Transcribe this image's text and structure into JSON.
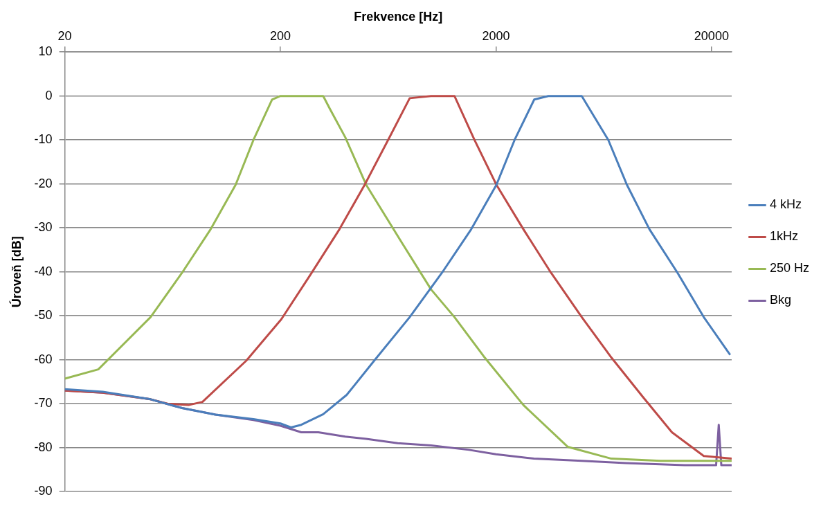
{
  "chart_data": {
    "type": "line",
    "xlabel": "Frekvence [Hz]",
    "ylabel": "Úroveň [dB]",
    "log": "x",
    "xlim": [
      20,
      24800
    ],
    "xticks": [
      20,
      200,
      2000,
      20000
    ],
    "ylim": [
      -90,
      10
    ],
    "yticks": [
      -90,
      -80,
      -70,
      -60,
      -50,
      -40,
      -30,
      -20,
      -10,
      0,
      10
    ],
    "grid": "y",
    "legend": "right",
    "marker": "none",
    "line_style": "solid",
    "series": [
      {
        "name": "4 kHz",
        "color": "#4a7ebb",
        "x": [
          20,
          30,
          50,
          70,
          100,
          150,
          200,
          224,
          250,
          316,
          406,
          545,
          796,
          1124,
          1536,
          2010,
          2440,
          3010,
          3500,
          4000,
          4500,
          5000,
          6640,
          8100,
          10300,
          13900,
          18400,
          24400
        ],
        "values": [
          -66.7,
          -67.3,
          -69,
          -71,
          -72.5,
          -73.5,
          -74.5,
          -75.4,
          -74.8,
          -72.4,
          -68,
          -60.2,
          -50.3,
          -40.2,
          -30.3,
          -20.2,
          -10,
          -0.8,
          0,
          0,
          0,
          0,
          -10,
          -20.2,
          -30.3,
          -40.2,
          -50.3,
          -58.9
        ]
      },
      {
        "name": "1kHz",
        "color": "#be4b48",
        "x": [
          20,
          30,
          50,
          60,
          75,
          87,
          139,
          202,
          277,
          376,
          492,
          632,
          796,
          1000,
          1284,
          1590,
          2010,
          2680,
          3600,
          5000,
          6860,
          9580,
          13100,
          18400,
          24800
        ],
        "values": [
          -67,
          -67.5,
          -69,
          -70,
          -70.3,
          -69.6,
          -60.2,
          -50.8,
          -40.5,
          -30.3,
          -20.2,
          -10,
          -0.5,
          0,
          0,
          -10,
          -20.2,
          -30.3,
          -40.2,
          -50.3,
          -59.5,
          -68.4,
          -76.5,
          -81.9,
          -82.5
        ]
      },
      {
        "name": "250 Hz",
        "color": "#98b954",
        "x": [
          20,
          28.6,
          50,
          70,
          95,
          124,
          150,
          183,
          200,
          250,
          316,
          340,
          400,
          500,
          735,
          1000,
          1284,
          1773,
          2680,
          4300,
          6860,
          11600,
          24800
        ],
        "values": [
          -64.3,
          -62.2,
          -50.3,
          -40.2,
          -30.3,
          -20.2,
          -10,
          -0.8,
          0,
          0,
          0,
          -3,
          -9.4,
          -20.2,
          -33.5,
          -44,
          -50.3,
          -59.5,
          -70.3,
          -79.8,
          -82.5,
          -83,
          -83
        ]
      },
      {
        "name": "Bkg",
        "color": "#7d60a0",
        "x": [
          20,
          30,
          50,
          70,
          100,
          150,
          200,
          250,
          300,
          400,
          500,
          700,
          1000,
          1500,
          2000,
          3000,
          5000,
          8000,
          15000,
          21000,
          21600,
          22200,
          24800
        ],
        "values": [
          -67,
          -67.5,
          -69,
          -71,
          -72.5,
          -73.7,
          -75,
          -76.5,
          -76.5,
          -77.5,
          -78,
          -79,
          -79.5,
          -80.5,
          -81.5,
          -82.5,
          -83,
          -83.5,
          -84,
          -84,
          -74.8,
          -84,
          -84
        ]
      }
    ]
  }
}
